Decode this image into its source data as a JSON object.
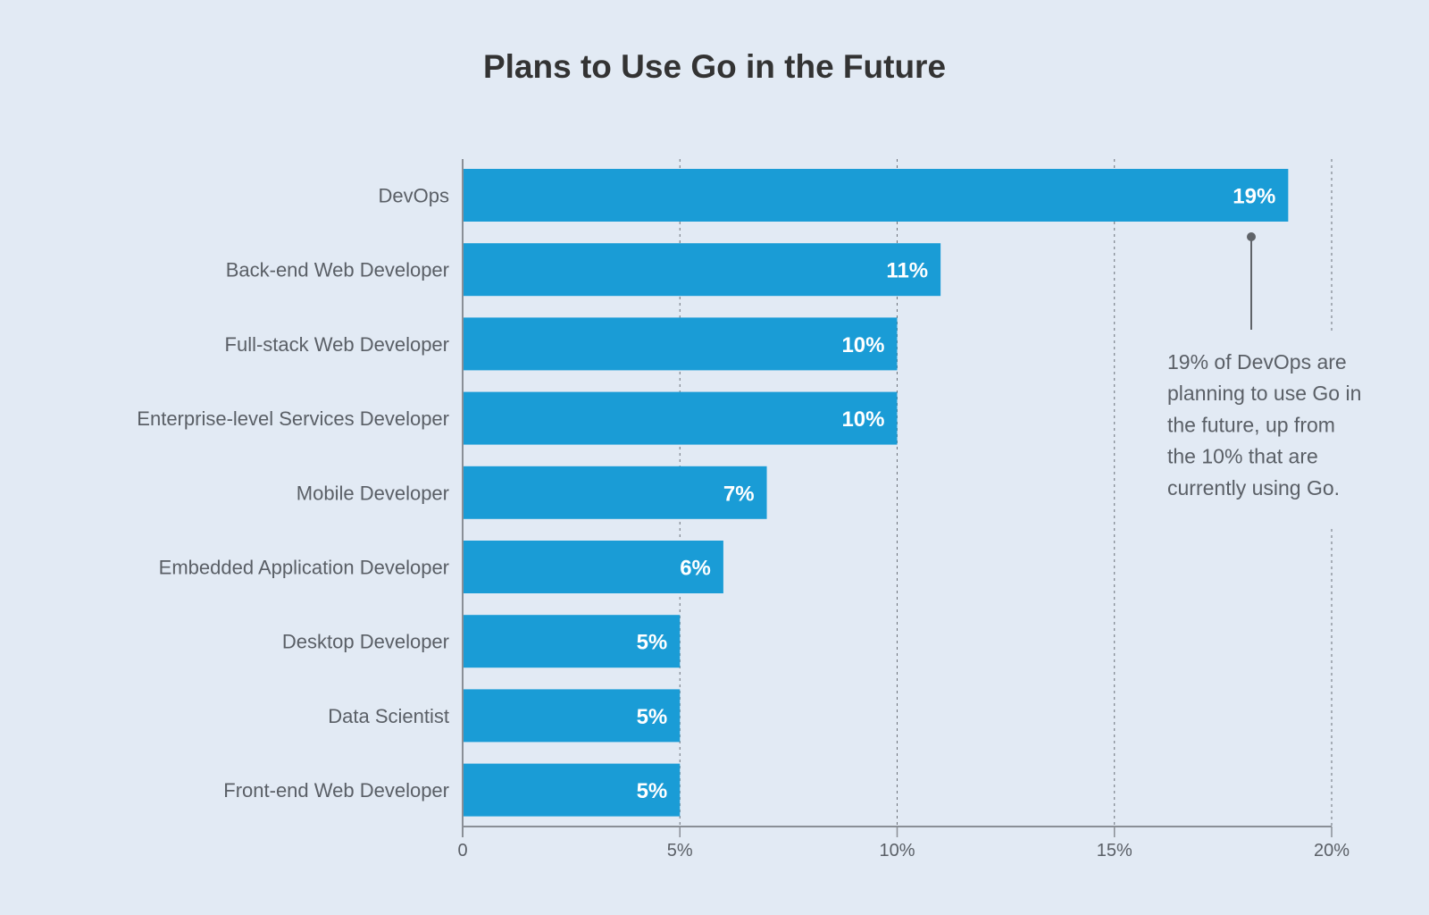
{
  "chart_data": {
    "type": "bar",
    "orientation": "horizontal",
    "title": "Plans to Use Go in the Future",
    "categories": [
      "DevOps",
      "Back-end Web Developer",
      "Full-stack Web Developer",
      "Enterprise-level Services Developer",
      "Mobile Developer",
      "Embedded Application Developer",
      "Desktop Developer",
      "Data Scientist",
      "Front-end Web Developer"
    ],
    "values": [
      19,
      11,
      10,
      10,
      7,
      6,
      5,
      5,
      5
    ],
    "data_labels": [
      "19%",
      "11%",
      "10%",
      "10%",
      "7%",
      "6%",
      "5%",
      "5%",
      "5%"
    ],
    "xlim": [
      0,
      20
    ],
    "xticks": [
      0,
      5,
      10,
      15,
      20
    ],
    "xtick_labels": [
      "0",
      "5%",
      "10%",
      "15%",
      "20%"
    ],
    "grid": "vertical dotted",
    "bar_color": "#1a9cd6",
    "annotation": {
      "target": "DevOps",
      "lines": [
        "19% of DevOps are",
        "planning to use Go in",
        "the future, up from",
        "the 10% that are",
        "currently using Go."
      ]
    }
  }
}
